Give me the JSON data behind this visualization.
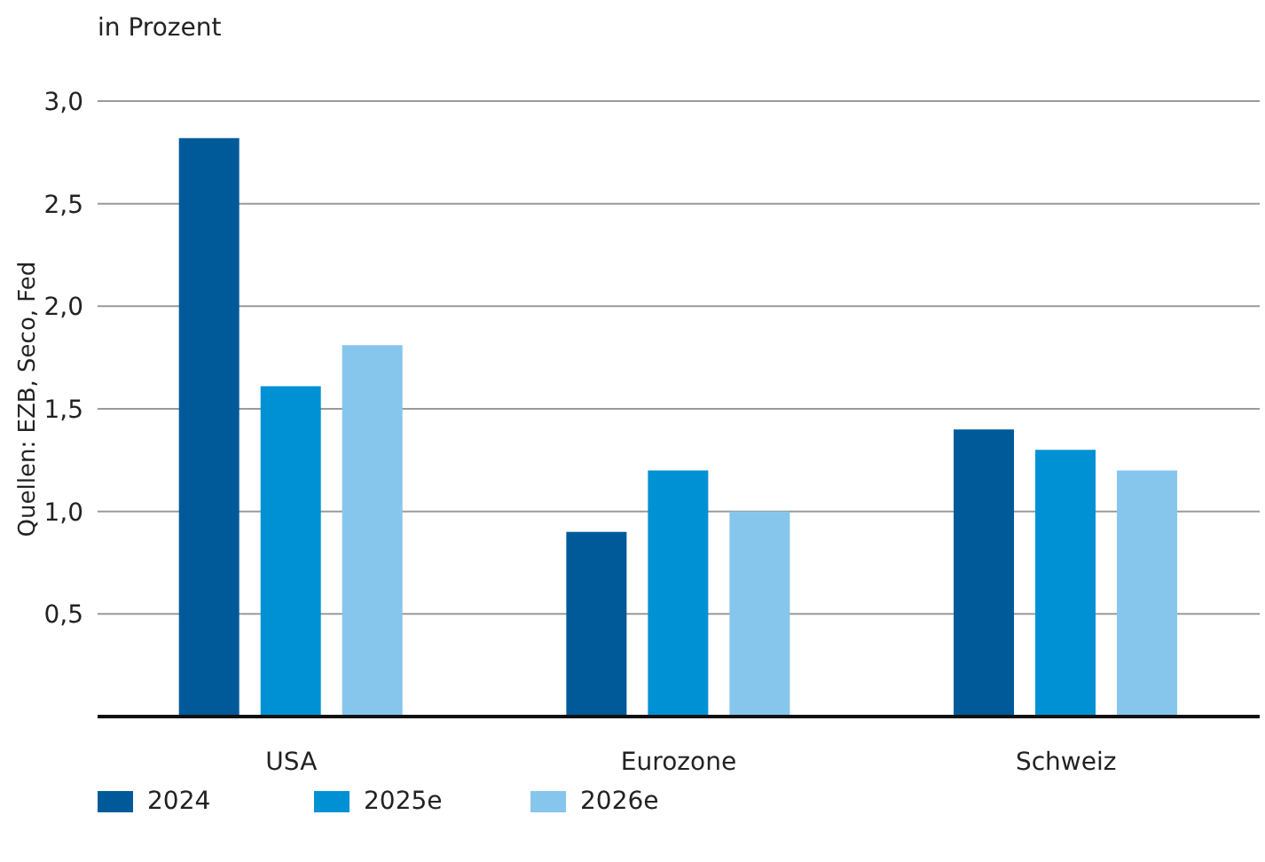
{
  "chart_data": {
    "type": "bar",
    "ylabel": "in Prozent",
    "annotations": [
      "Quellen: EZB, Seco, Fed"
    ],
    "categories": [
      "USA",
      "Eurozone",
      "Schweiz"
    ],
    "series": [
      {
        "name": "2024",
        "color": "#005a9a",
        "values": [
          2.82,
          0.9,
          1.4
        ]
      },
      {
        "name": "2025e",
        "color": "#0091d4",
        "values": [
          1.61,
          1.2,
          1.3
        ]
      },
      {
        "name": "2026e",
        "color": "#86c6ec",
        "values": [
          1.81,
          1.0,
          1.2
        ]
      }
    ],
    "ylim": [
      0,
      3
    ],
    "yticks": [
      {
        "value": 0,
        "label": null
      },
      {
        "value": 0.5,
        "label": "0,5"
      },
      {
        "value": 1,
        "label": "1,0"
      },
      {
        "value": 1.5,
        "label": "1,5"
      },
      {
        "value": 2,
        "label": "2,0"
      },
      {
        "value": 2.5,
        "label": "2,5"
      },
      {
        "value": 3,
        "label": "3,0"
      }
    ],
    "grid": "y",
    "legend": "bottom left"
  }
}
